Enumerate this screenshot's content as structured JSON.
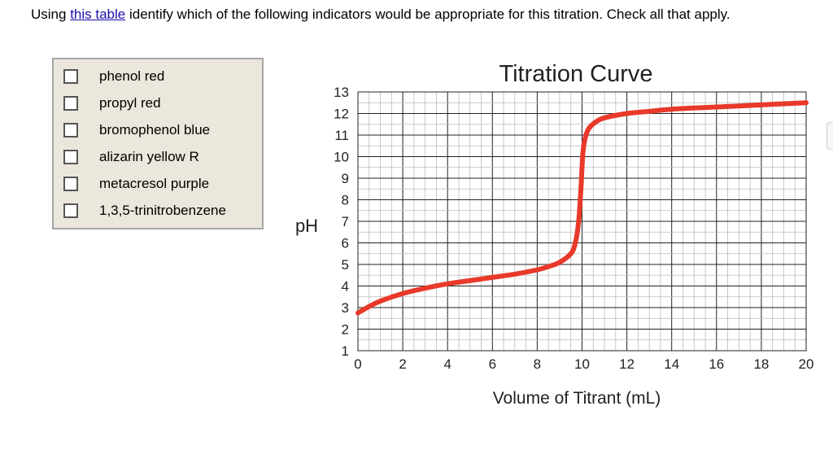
{
  "question": {
    "prefix": "Using ",
    "link_text": "this table",
    "suffix": " identify which of the following indicators would be appropriate for this titration. Check all that apply."
  },
  "options": [
    {
      "label": "phenol red",
      "checked": false
    },
    {
      "label": "propyl red",
      "checked": false
    },
    {
      "label": "bromophenol blue",
      "checked": false
    },
    {
      "label": "alizarin yellow R",
      "checked": false
    },
    {
      "label": "metacresol purple",
      "checked": false
    },
    {
      "label": "1,3,5-trinitrobenzene",
      "checked": false
    }
  ],
  "chart_data": {
    "type": "line",
    "title": "Titration Curve",
    "xlabel": "Volume of Titrant (mL)",
    "ylabel": "pH",
    "xlim": [
      0,
      20
    ],
    "ylim": [
      1,
      13
    ],
    "xticks": [
      "0",
      "2",
      "4",
      "6",
      "8",
      "10",
      "12",
      "14",
      "16",
      "18",
      "20"
    ],
    "yticks": [
      "1",
      "2",
      "3",
      "4",
      "5",
      "6",
      "7",
      "8",
      "9",
      "10",
      "11",
      "12",
      "13"
    ],
    "grid": true,
    "series": [
      {
        "color": "#e8392a",
        "x": [
          0,
          0.5,
          1,
          2,
          3,
          4,
          5,
          6,
          7,
          8,
          8.5,
          9,
          9.5,
          9.7,
          9.85,
          9.95,
          10,
          10.05,
          10.15,
          10.3,
          10.6,
          11,
          12,
          13,
          14,
          16,
          18,
          20
        ],
        "y": [
          2.75,
          3.05,
          3.3,
          3.65,
          3.9,
          4.1,
          4.25,
          4.4,
          4.55,
          4.75,
          4.9,
          5.1,
          5.5,
          6.0,
          7.0,
          8.5,
          9.5,
          10.3,
          10.9,
          11.3,
          11.6,
          11.8,
          12.0,
          12.1,
          12.2,
          12.3,
          12.4,
          12.5
        ]
      }
    ]
  }
}
